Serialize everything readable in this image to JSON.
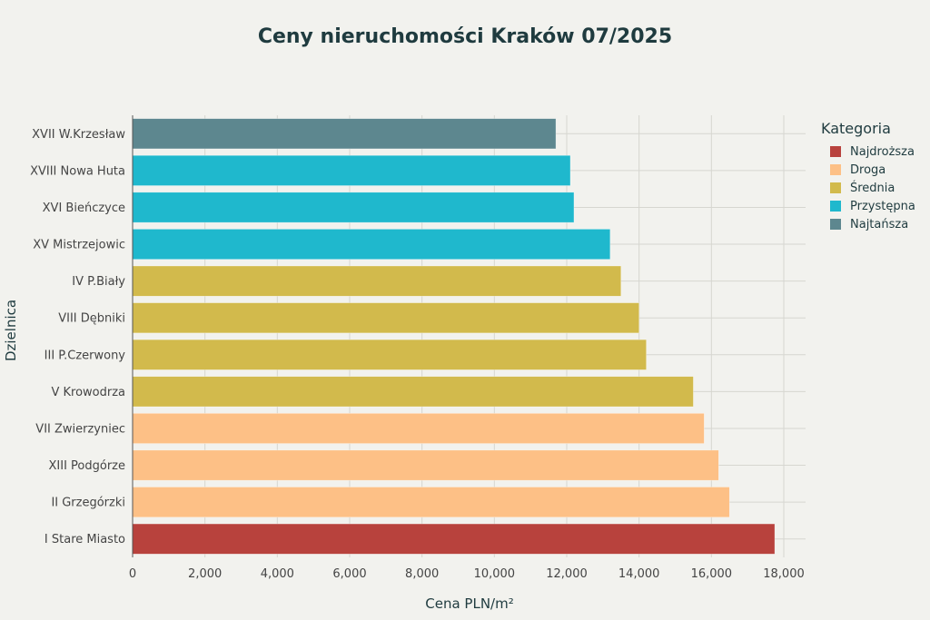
{
  "chart_data": {
    "type": "bar",
    "orientation": "horizontal",
    "title": "Ceny nieruchomości Kraków 07/2025",
    "xlabel": "Cena PLN/m²",
    "ylabel": "Dzielnica",
    "xlim": [
      0,
      18000
    ],
    "xticks": [
      "0",
      "2,000",
      "4,000",
      "6,000",
      "8,000",
      "10,000",
      "12,000",
      "14,000",
      "16,000",
      "18,000"
    ],
    "grid": true,
    "legend_title": "Kategoria",
    "legend_position": "top-right",
    "legend": [
      {
        "name": "Najdroższa",
        "color": "#b8423d"
      },
      {
        "name": "Droga",
        "color": "#fdc086"
      },
      {
        "name": "Średnia",
        "color": "#d2ba4c"
      },
      {
        "name": "Przystępna",
        "color": "#1fb8cd"
      },
      {
        "name": "Najtańsza",
        "color": "#5d878f"
      }
    ],
    "bars": [
      {
        "category": "XVII W.Krzesław",
        "value": 11700,
        "group": "Najtańsza"
      },
      {
        "category": "XVIII Nowa Huta",
        "value": 12100,
        "group": "Przystępna"
      },
      {
        "category": "XVI Bieńczyce",
        "value": 12200,
        "group": "Przystępna"
      },
      {
        "category": "XV Mistrzejowic",
        "value": 13200,
        "group": "Przystępna"
      },
      {
        "category": "IV P.Biały",
        "value": 13500,
        "group": "Średnia"
      },
      {
        "category": "VIII Dębniki",
        "value": 14000,
        "group": "Średnia"
      },
      {
        "category": "III P.Czerwony",
        "value": 14200,
        "group": "Średnia"
      },
      {
        "category": "V Krowodrza",
        "value": 15500,
        "group": "Średnia"
      },
      {
        "category": "VII Zwierzyniec",
        "value": 15800,
        "group": "Droga"
      },
      {
        "category": "XIII Podgórze",
        "value": 16200,
        "group": "Droga"
      },
      {
        "category": "II Grzegórzki",
        "value": 16500,
        "group": "Droga"
      },
      {
        "category": "I Stare Miasto",
        "value": 17750,
        "group": "Najdroższa"
      }
    ]
  }
}
